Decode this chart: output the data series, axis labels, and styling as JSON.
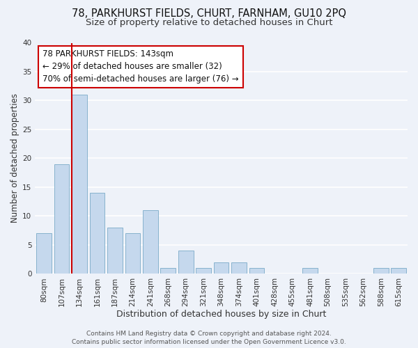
{
  "title": "78, PARKHURST FIELDS, CHURT, FARNHAM, GU10 2PQ",
  "subtitle": "Size of property relative to detached houses in Churt",
  "xlabel": "Distribution of detached houses by size in Churt",
  "ylabel": "Number of detached properties",
  "bar_color": "#c5d8ed",
  "bar_edge_color": "#7aaac8",
  "bg_color": "#eef2f9",
  "grid_color": "white",
  "categories": [
    "80sqm",
    "107sqm",
    "134sqm",
    "161sqm",
    "187sqm",
    "214sqm",
    "241sqm",
    "268sqm",
    "294sqm",
    "321sqm",
    "348sqm",
    "374sqm",
    "401sqm",
    "428sqm",
    "455sqm",
    "481sqm",
    "508sqm",
    "535sqm",
    "562sqm",
    "588sqm",
    "615sqm"
  ],
  "values": [
    7,
    19,
    31,
    14,
    8,
    7,
    11,
    1,
    4,
    1,
    2,
    2,
    1,
    0,
    0,
    1,
    0,
    0,
    0,
    1,
    1
  ],
  "ylim": [
    0,
    40
  ],
  "yticks": [
    0,
    5,
    10,
    15,
    20,
    25,
    30,
    35,
    40
  ],
  "vline_color": "#cc0000",
  "vline_x_index": 2,
  "annotation_title": "78 PARKHURST FIELDS: 143sqm",
  "annotation_line1": "← 29% of detached houses are smaller (32)",
  "annotation_line2": "70% of semi-detached houses are larger (76) →",
  "annotation_box_color": "#cc0000",
  "footer_line1": "Contains HM Land Registry data © Crown copyright and database right 2024.",
  "footer_line2": "Contains public sector information licensed under the Open Government Licence v3.0.",
  "title_fontsize": 10.5,
  "subtitle_fontsize": 9.5,
  "xlabel_fontsize": 9,
  "ylabel_fontsize": 8.5,
  "tick_fontsize": 7.5,
  "annotation_fontsize": 8.5,
  "footer_fontsize": 6.5
}
